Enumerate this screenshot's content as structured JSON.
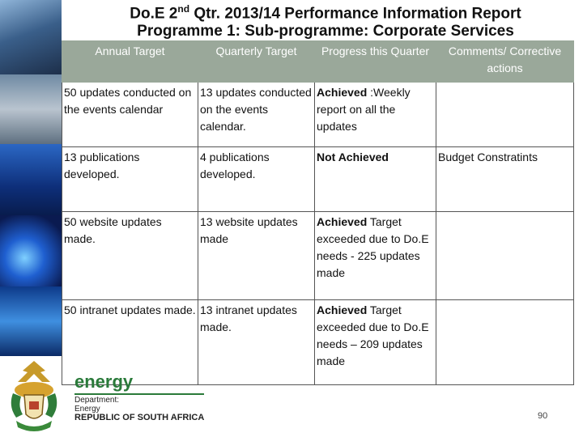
{
  "title": {
    "line1_prefix": "Do.E 2",
    "line1_sup": "nd",
    "line1_suffix": " Qtr. 2013/14 Performance Information Report",
    "line2": "Programme 1: Sub-programme: Corporate Services"
  },
  "table": {
    "headers": [
      "Annual Target",
      "Quarterly Target",
      "Progress this Quarter",
      "Comments/ Corrective actions"
    ],
    "rows": [
      {
        "annual": "50 updates conducted on the events calendar",
        "quarterly": "13 updates conducted on the events calendar.",
        "progress_status": "Achieved",
        "progress_detail": " :Weekly report on all the updates",
        "comments": ""
      },
      {
        "annual": "13 publications developed.",
        "quarterly": "4 publications developed.",
        "progress_status": "Not Achieved",
        "progress_detail": "",
        "comments": "Budget Constratints"
      },
      {
        "annual": "50 website updates made.",
        "quarterly": "13 website updates made",
        "progress_status": "Achieved",
        "progress_detail": " Target exceeded due to Do.E needs - 225 updates made",
        "comments": ""
      },
      {
        "annual": "50 intranet updates made.",
        "quarterly": "13 intranet updates made.",
        "progress_status": "Achieved",
        "progress_detail": " Target exceeded due to Do.E needs – 209 updates made",
        "comments": ""
      }
    ]
  },
  "footer": {
    "brand": "energy",
    "dept_line1": "Department:",
    "dept_line2": "Energy",
    "dept_line3": "REPUBLIC OF SOUTH AFRICA",
    "page_number": "90"
  },
  "colors": {
    "header_bg": "#9aa89a",
    "brand_green": "#2a7a3a"
  }
}
